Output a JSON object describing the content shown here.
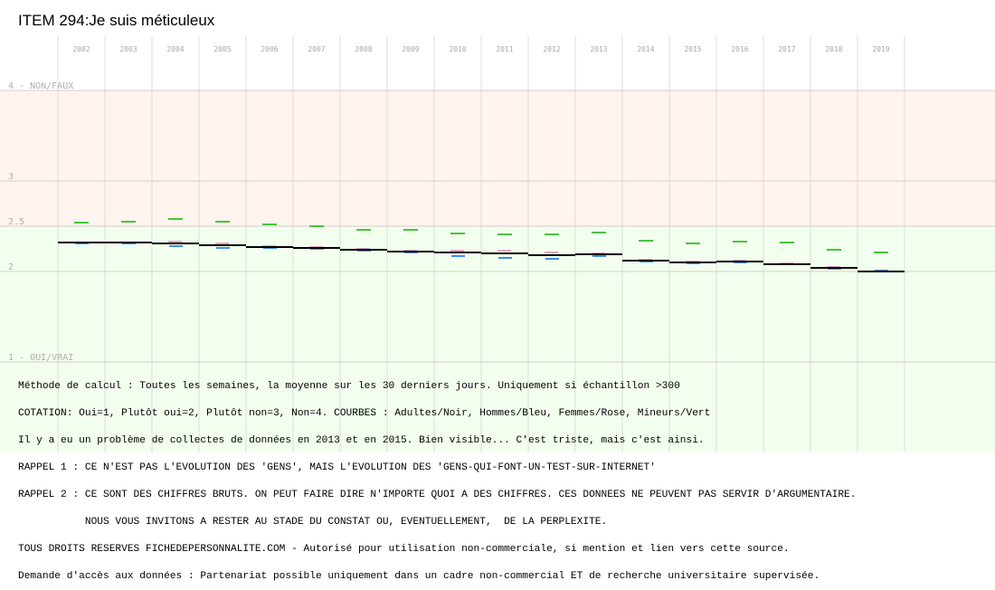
{
  "chart_data": {
    "type": "line",
    "title": "ITEM 294:Je suis méticuleux",
    "x": [
      "2002",
      "2003",
      "2004",
      "2005",
      "2006",
      "2007",
      "2008",
      "2009",
      "2010",
      "2011",
      "2012",
      "2013",
      "2014",
      "2015",
      "2016",
      "2017",
      "2018",
      "2019"
    ],
    "y_ticks": [
      {
        "value": 4,
        "label": "4 - NON/FAUX"
      },
      {
        "value": 3,
        "label": "3"
      },
      {
        "value": 2.5,
        "label": "2.5"
      },
      {
        "value": 2,
        "label": "2"
      },
      {
        "value": 1,
        "label": "1 - OUI/VRAI"
      }
    ],
    "ylim": [
      1,
      4
    ],
    "background_bands": [
      {
        "from": 2.5,
        "to": 4,
        "color": "#fff4ee"
      },
      {
        "from": 1,
        "to": 2.5,
        "color": "#f2ffee"
      }
    ],
    "grid": true,
    "series": [
      {
        "name": "Adultes",
        "color": "#000000",
        "values": [
          2.32,
          2.32,
          2.31,
          2.29,
          2.27,
          2.26,
          2.24,
          2.22,
          2.21,
          2.2,
          2.18,
          2.19,
          2.12,
          2.1,
          2.11,
          2.08,
          2.04,
          2.0
        ]
      },
      {
        "name": "Hommes",
        "color": "#3f8fe8",
        "values": [
          2.31,
          2.31,
          2.28,
          2.26,
          2.26,
          2.25,
          2.23,
          2.21,
          2.17,
          2.15,
          2.14,
          2.17,
          2.11,
          2.09,
          2.1,
          2.08,
          2.03,
          2.01
        ]
      },
      {
        "name": "Femmes",
        "color": "#e7a4c3",
        "values": [
          2.32,
          2.32,
          2.33,
          2.31,
          2.28,
          2.27,
          2.25,
          2.23,
          2.23,
          2.23,
          2.21,
          2.2,
          2.13,
          2.11,
          2.12,
          2.09,
          2.05,
          2.0
        ]
      },
      {
        "name": "Mineurs",
        "color": "#46c43c",
        "values": [
          2.54,
          2.55,
          2.58,
          2.55,
          2.52,
          2.5,
          2.46,
          2.46,
          2.42,
          2.41,
          2.41,
          2.43,
          2.34,
          2.31,
          2.33,
          2.32,
          2.24,
          2.21
        ]
      }
    ]
  },
  "notes": [
    "Méthode de calcul : Toutes les semaines, la moyenne sur les 30 derniers jours. Uniquement si échantillon >300",
    "COTATION: Oui=1, Plutôt oui=2, Plutôt non=3, Non=4. COURBES : Adultes/Noir, Hommes/Bleu, Femmes/Rose, Mineurs/Vert",
    "Il y a eu un problème de collectes de données en 2013 et en 2015. Bien visible... C'est triste, mais c'est ainsi.",
    "RAPPEL 1 : CE N'EST PAS L'EVOLUTION DES 'GENS', MAIS L'EVOLUTION DES 'GENS-QUI-FONT-UN-TEST-SUR-INTERNET'",
    "RAPPEL 2 : CE SONT DES CHIFFRES BRUTS. ON PEUT FAIRE DIRE N'IMPORTE QUOI A DES CHIFFRES. CES DONNEES NE PEUVENT PAS SERVIR D'ARGUMENTAIRE.",
    "           NOUS VOUS INVITONS A RESTER AU STADE DU CONSTAT OU, EVENTUELLEMENT,  DE LA PERPLEXITE.",
    "TOUS DROITS RESERVES FICHEDEPERSONNALITE.COM - Autorisé pour utilisation non-commerciale, si mention et lien vers cette source.",
    "Demande d'accès aux données : Partenariat possible uniquement dans un cadre non-commercial ET de recherche universitaire supervisée."
  ]
}
